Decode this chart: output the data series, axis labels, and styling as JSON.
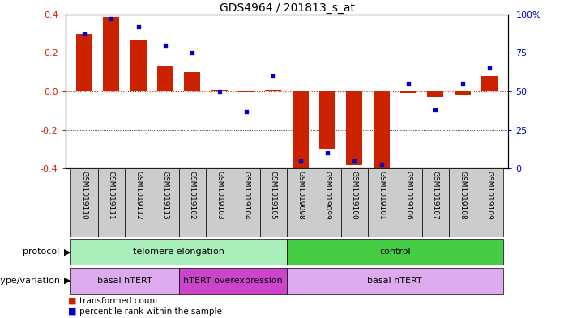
{
  "title": "GDS4964 / 201813_s_at",
  "samples": [
    "GSM1019110",
    "GSM1019111",
    "GSM1019112",
    "GSM1019113",
    "GSM1019102",
    "GSM1019103",
    "GSM1019104",
    "GSM1019105",
    "GSM1019098",
    "GSM1019099",
    "GSM1019100",
    "GSM1019101",
    "GSM1019106",
    "GSM1019107",
    "GSM1019108",
    "GSM1019109"
  ],
  "bar_values": [
    0.3,
    0.385,
    0.27,
    0.13,
    0.1,
    0.01,
    -0.005,
    0.01,
    -0.4,
    -0.3,
    -0.38,
    -0.4,
    -0.01,
    -0.03,
    -0.02,
    0.08
  ],
  "dot_values": [
    87,
    97,
    92,
    80,
    75,
    50,
    37,
    60,
    5,
    10,
    5,
    3,
    55,
    38,
    55,
    65
  ],
  "ylim": [
    -0.4,
    0.4
  ],
  "yticks_left": [
    -0.4,
    -0.2,
    0.0,
    0.2,
    0.4
  ],
  "ytick_labels_right": [
    "0",
    "25",
    "50",
    "75",
    "100%"
  ],
  "yticks_right": [
    0,
    25,
    50,
    75,
    100
  ],
  "bar_color": "#cc2200",
  "dot_color": "#0000cc",
  "zero_line_color": "#cc2200",
  "protocol_labels": [
    {
      "text": "telomere elongation",
      "start": 0,
      "end": 7,
      "color": "#aaeebb"
    },
    {
      "text": "control",
      "start": 8,
      "end": 15,
      "color": "#44cc44"
    }
  ],
  "genotype_labels": [
    {
      "text": "basal hTERT",
      "start": 0,
      "end": 3,
      "color": "#ddaaee"
    },
    {
      "text": "hTERT overexpression",
      "start": 4,
      "end": 7,
      "color": "#cc44cc"
    },
    {
      "text": "basal hTERT",
      "start": 8,
      "end": 15,
      "color": "#ddaaee"
    }
  ],
  "legend_bar_label": "transformed count",
  "legend_dot_label": "percentile rank within the sample",
  "protocol_row_label": "protocol",
  "genotype_row_label": "genotype/variation",
  "background_color": "#ffffff",
  "tick_bg_color": "#cccccc"
}
